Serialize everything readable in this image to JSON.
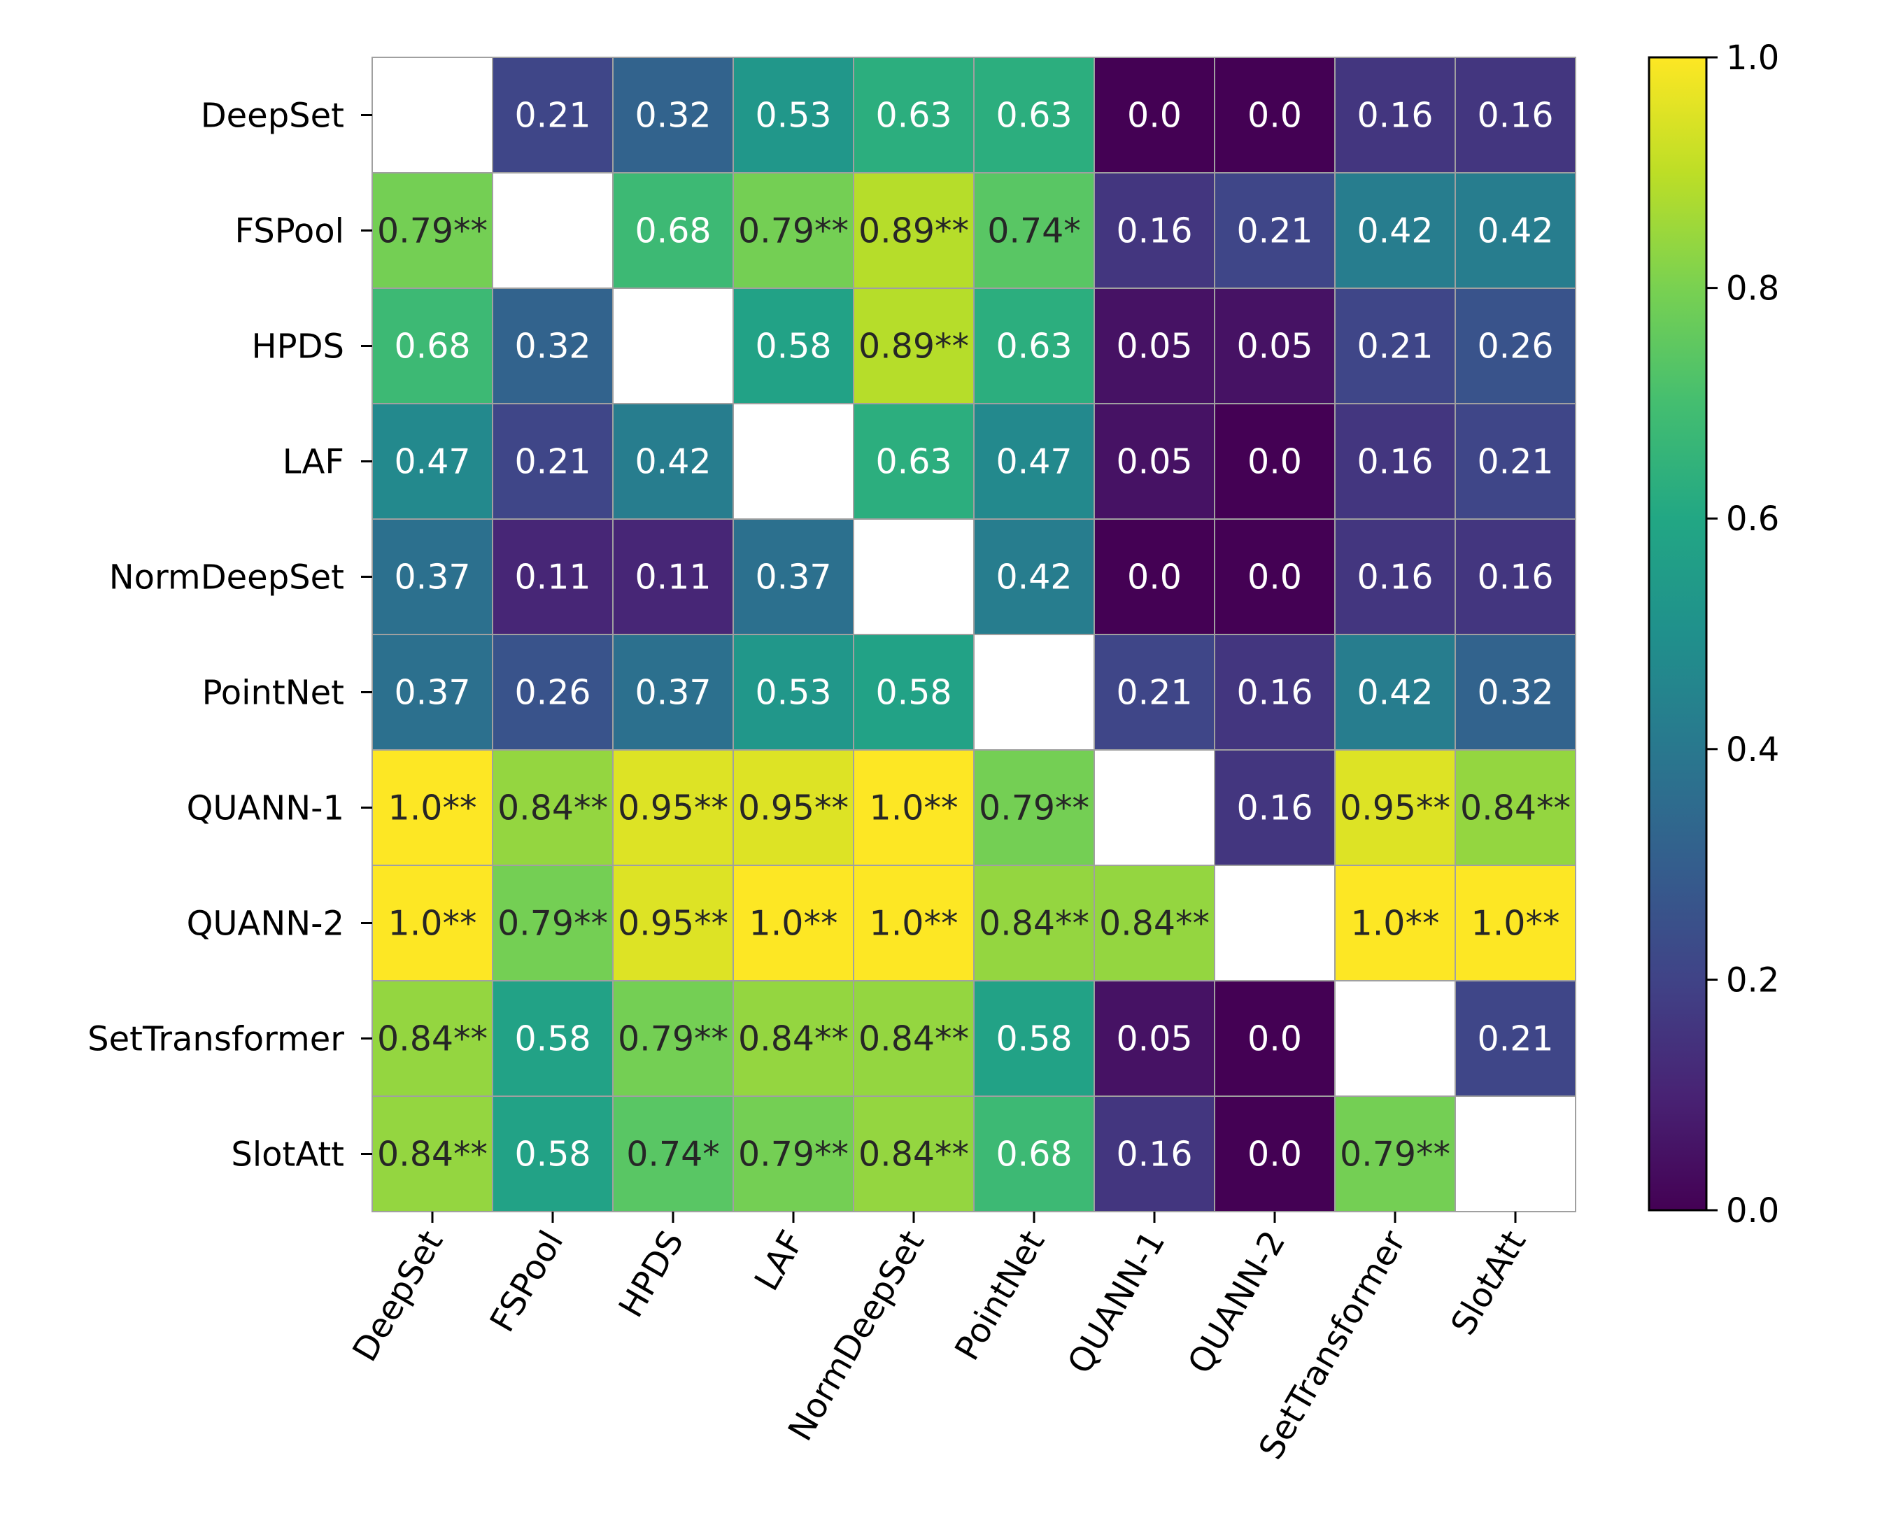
{
  "chart_data": {
    "type": "heatmap",
    "title": "",
    "xlabel": "",
    "ylabel": "",
    "rows": [
      "DeepSet",
      "FSPool",
      "HPDS",
      "LAF",
      "NormDeepSet",
      "PointNet",
      "QUANN-1",
      "QUANN-2",
      "SetTransformer",
      "SlotAtt"
    ],
    "columns": [
      "DeepSet",
      "FSPool",
      "HPDS",
      "LAF",
      "NormDeepSet",
      "PointNet",
      "QUANN-1",
      "QUANN-2",
      "SetTransformer",
      "SlotAtt"
    ],
    "values": [
      [
        null,
        0.21,
        0.32,
        0.53,
        0.63,
        0.63,
        0.0,
        0.0,
        0.16,
        0.16
      ],
      [
        0.79,
        null,
        0.68,
        0.79,
        0.89,
        0.74,
        0.16,
        0.21,
        0.42,
        0.42
      ],
      [
        0.68,
        0.32,
        null,
        0.58,
        0.89,
        0.63,
        0.05,
        0.05,
        0.21,
        0.26
      ],
      [
        0.47,
        0.21,
        0.42,
        null,
        0.63,
        0.47,
        0.05,
        0.0,
        0.16,
        0.21
      ],
      [
        0.37,
        0.11,
        0.11,
        0.37,
        null,
        0.42,
        0.0,
        0.0,
        0.16,
        0.16
      ],
      [
        0.37,
        0.26,
        0.37,
        0.53,
        0.58,
        null,
        0.21,
        0.16,
        0.42,
        0.32
      ],
      [
        1.0,
        0.84,
        0.95,
        0.95,
        1.0,
        0.79,
        null,
        0.16,
        0.95,
        0.84
      ],
      [
        1.0,
        0.79,
        0.95,
        1.0,
        1.0,
        0.84,
        0.84,
        null,
        1.0,
        1.0
      ],
      [
        0.84,
        0.58,
        0.79,
        0.84,
        0.84,
        0.58,
        0.05,
        0.0,
        null,
        0.21
      ],
      [
        0.84,
        0.58,
        0.74,
        0.79,
        0.84,
        0.68,
        0.16,
        0.0,
        0.79,
        null
      ]
    ],
    "labels": [
      [
        "",
        "0.21",
        "0.32",
        "0.53",
        "0.63",
        "0.63",
        "0.0",
        "0.0",
        "0.16",
        "0.16"
      ],
      [
        "0.79**",
        "",
        "0.68",
        "0.79**",
        "0.89**",
        "0.74*",
        "0.16",
        "0.21",
        "0.42",
        "0.42"
      ],
      [
        "0.68",
        "0.32",
        "",
        "0.58",
        "0.89**",
        "0.63",
        "0.05",
        "0.05",
        "0.21",
        "0.26"
      ],
      [
        "0.47",
        "0.21",
        "0.42",
        "",
        "0.63",
        "0.47",
        "0.05",
        "0.0",
        "0.16",
        "0.21"
      ],
      [
        "0.37",
        "0.11",
        "0.11",
        "0.37",
        "",
        "0.42",
        "0.0",
        "0.0",
        "0.16",
        "0.16"
      ],
      [
        "0.37",
        "0.26",
        "0.37",
        "0.53",
        "0.58",
        "",
        "0.21",
        "0.16",
        "0.42",
        "0.32"
      ],
      [
        "1.0**",
        "0.84**",
        "0.95**",
        "0.95**",
        "1.0**",
        "0.79**",
        "",
        "0.16",
        "0.95**",
        "0.84**"
      ],
      [
        "1.0**",
        "0.79**",
        "0.95**",
        "1.0**",
        "1.0**",
        "0.84**",
        "0.84**",
        "",
        "1.0**",
        "1.0**"
      ],
      [
        "0.84**",
        "0.58",
        "0.79**",
        "0.84**",
        "0.84**",
        "0.58",
        "0.05",
        "0.0",
        "",
        "0.21"
      ],
      [
        "0.84**",
        "0.58",
        "0.74*",
        "0.79**",
        "0.84**",
        "0.68",
        "0.16",
        "0.0",
        "0.79**",
        ""
      ]
    ],
    "colormap": "viridis",
    "vmin": 0.0,
    "vmax": 1.0,
    "colorbar_ticks": [
      "0.0",
      "0.2",
      "0.4",
      "0.6",
      "0.8",
      "1.0"
    ],
    "x_tick_rotation_deg": -60
  },
  "colors": {
    "gridline": "#a0a0a0",
    "light_text": "#ffffff",
    "dark_text": "#262626",
    "axis": "#000000"
  }
}
